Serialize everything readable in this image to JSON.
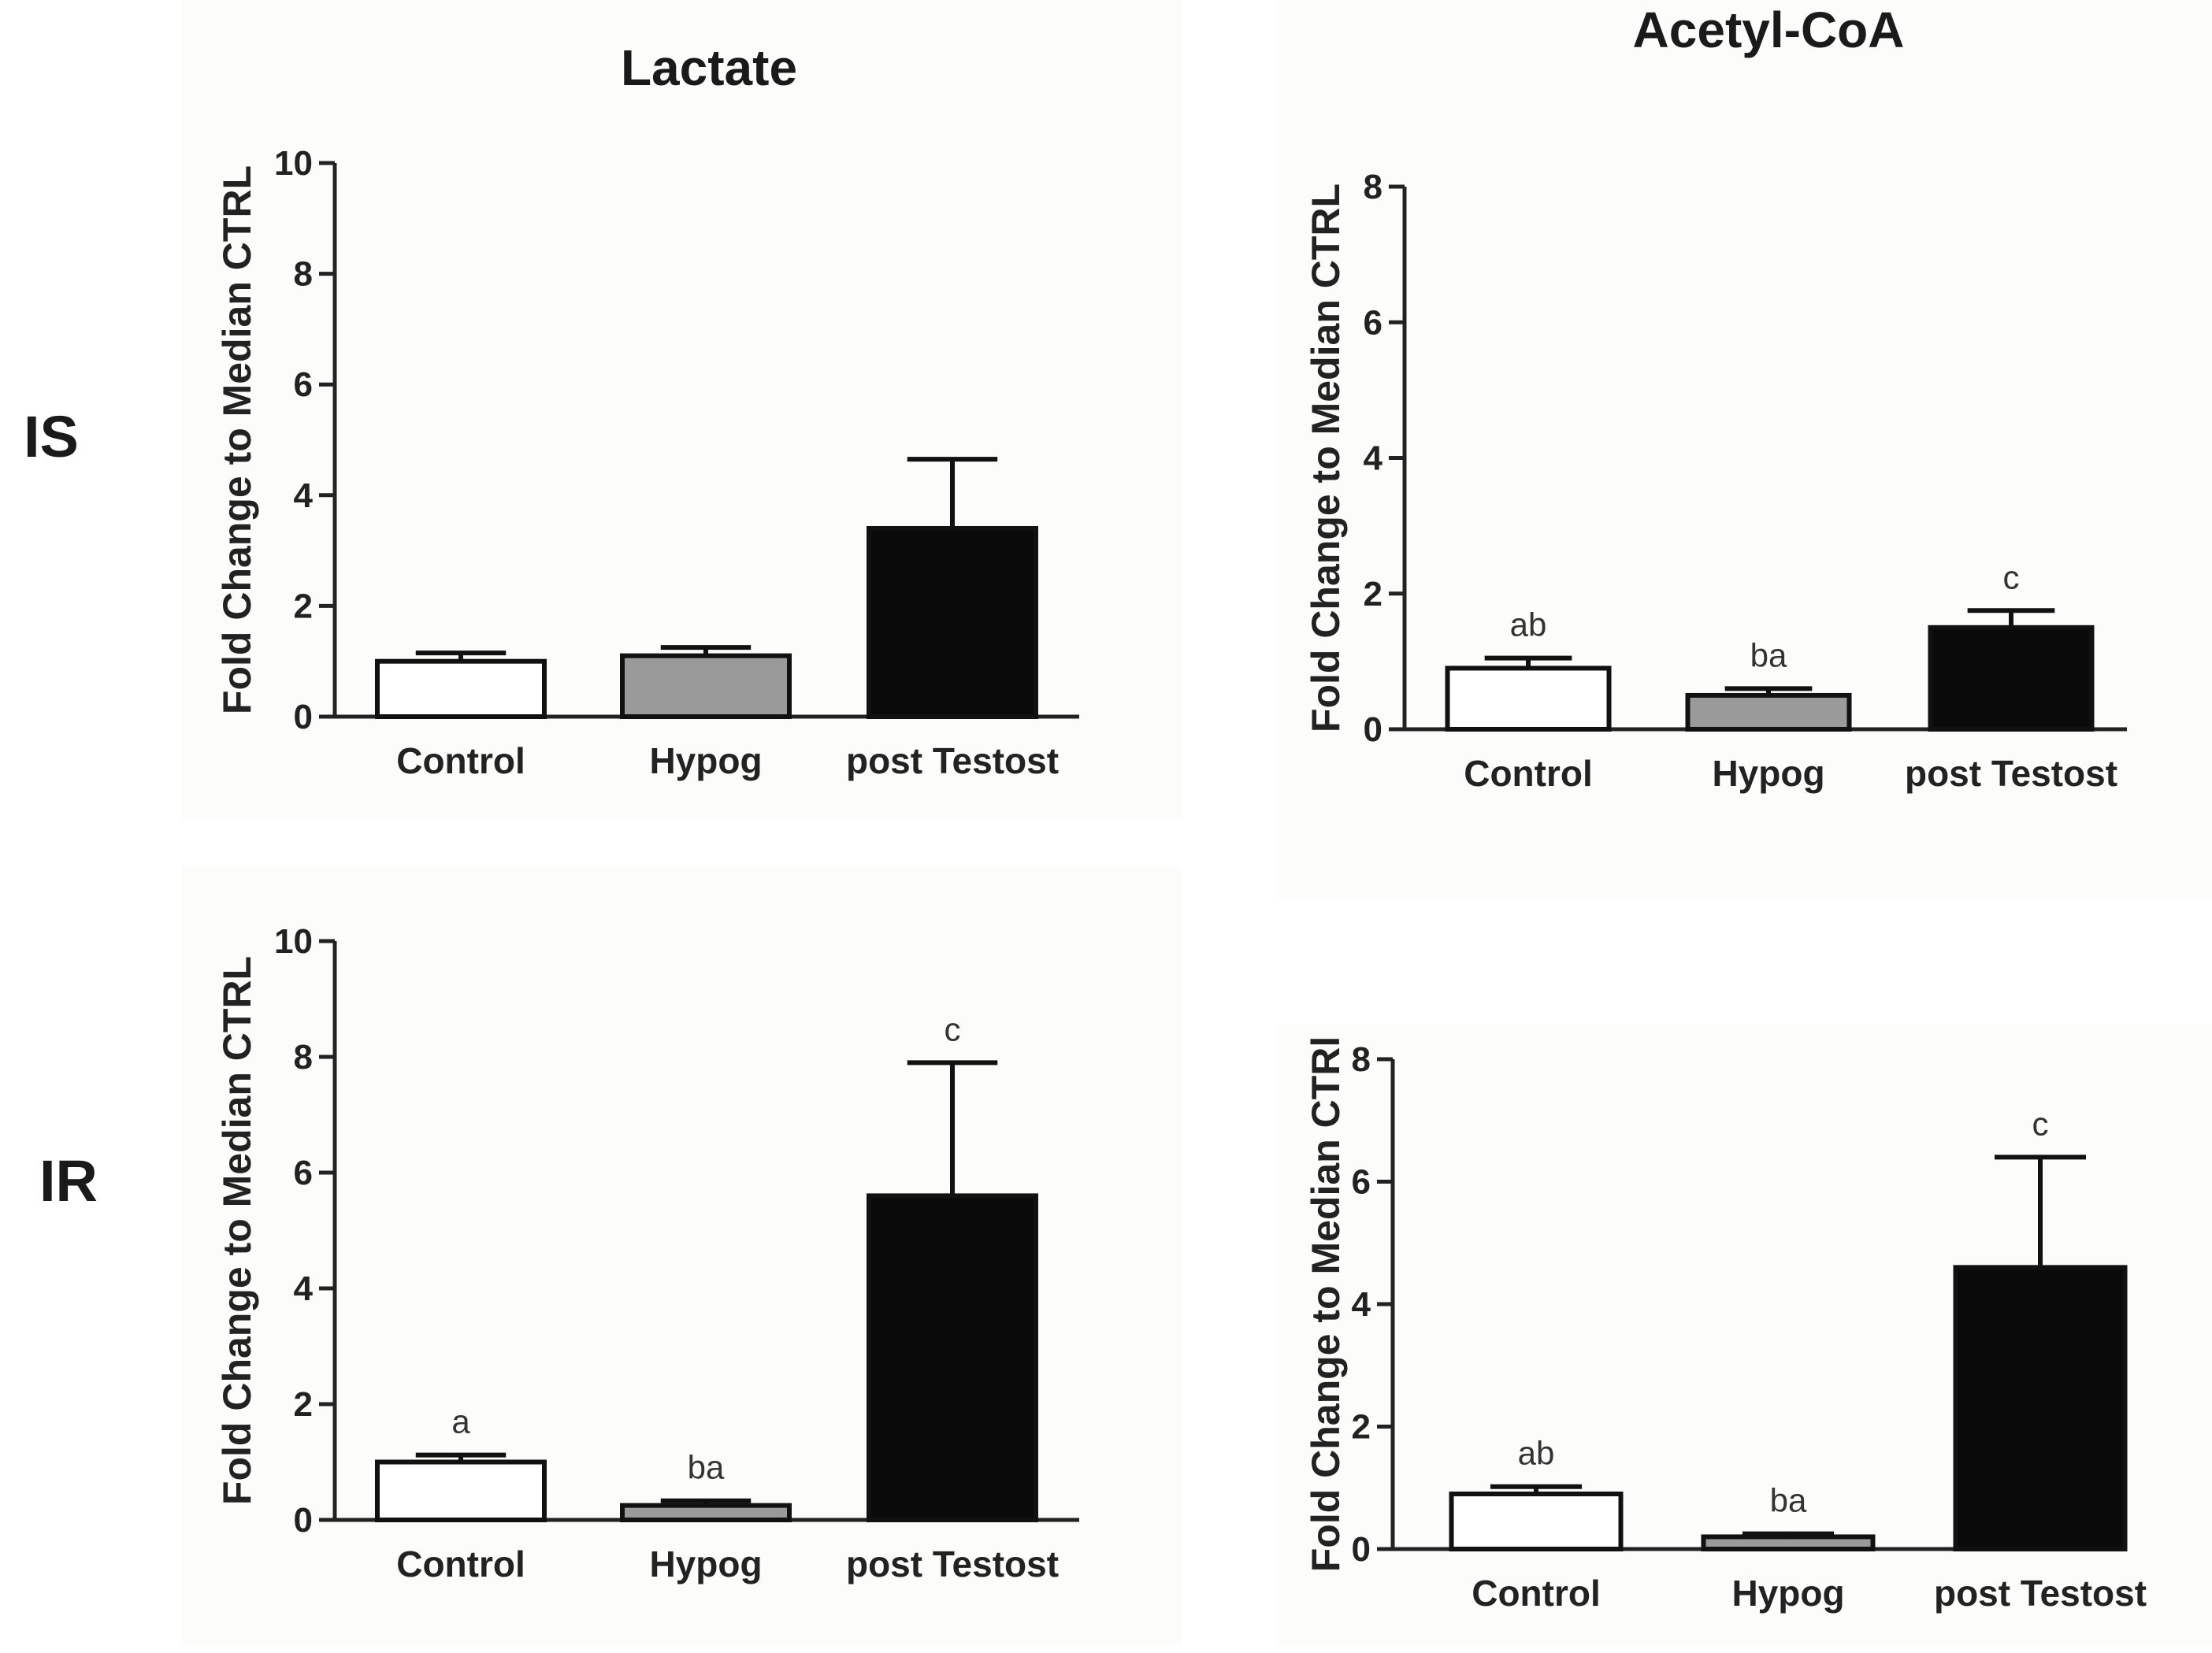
{
  "row_labels": [
    "IS",
    "IR"
  ],
  "colors": {
    "Control": "#ffffff",
    "Hypog": "#9a9a9a",
    "post Testost": "#0a0a0a"
  },
  "chart_data": [
    {
      "id": "lactate-is",
      "type": "bar",
      "title": "Lactate",
      "ylabel": "Fold  Change to  Median CTRL",
      "ylim": [
        0,
        10
      ],
      "yticks": [
        "0",
        "2",
        "4",
        "6",
        "8",
        "10"
      ],
      "categories": [
        "Control",
        "Hypog",
        "post Testost"
      ],
      "values": [
        1.0,
        1.1,
        3.4
      ],
      "errors": [
        0.15,
        0.15,
        1.25
      ],
      "sig_labels": [
        "",
        "",
        ""
      ]
    },
    {
      "id": "acetyl-is",
      "type": "bar",
      "title": "Acetyl-CoA",
      "ylabel": "Fold  Change to  Median CTRL",
      "ylim": [
        0,
        8
      ],
      "yticks": [
        "0",
        "2",
        "4",
        "6",
        "8"
      ],
      "categories": [
        "Control",
        "Hypog",
        "post Testost"
      ],
      "values": [
        0.9,
        0.5,
        1.5
      ],
      "errors": [
        0.15,
        0.1,
        0.25
      ],
      "sig_labels": [
        "ab",
        "ba",
        "c"
      ]
    },
    {
      "id": "lactate-ir",
      "type": "bar",
      "title": "",
      "ylabel": "Fold  Change to  Median CTRL",
      "ylim": [
        0,
        10
      ],
      "yticks": [
        "0",
        "2",
        "4",
        "6",
        "8",
        "10"
      ],
      "categories": [
        "Control",
        "Hypog",
        "post Testost"
      ],
      "values": [
        1.0,
        0.25,
        5.6
      ],
      "errors": [
        0.12,
        0.08,
        2.3
      ],
      "sig_labels": [
        "a",
        "ba",
        "c"
      ]
    },
    {
      "id": "acetyl-ir",
      "type": "bar",
      "title": "",
      "ylabel": "Fold  Change to  Median CTRl",
      "ylim": [
        0,
        8
      ],
      "yticks": [
        "0",
        "2",
        "4",
        "6",
        "8"
      ],
      "categories": [
        "Control",
        "Hypog",
        "post Testost"
      ],
      "values": [
        0.9,
        0.2,
        4.6
      ],
      "errors": [
        0.12,
        0.05,
        1.8
      ],
      "sig_labels": [
        "ab",
        "ba",
        "c"
      ]
    }
  ]
}
